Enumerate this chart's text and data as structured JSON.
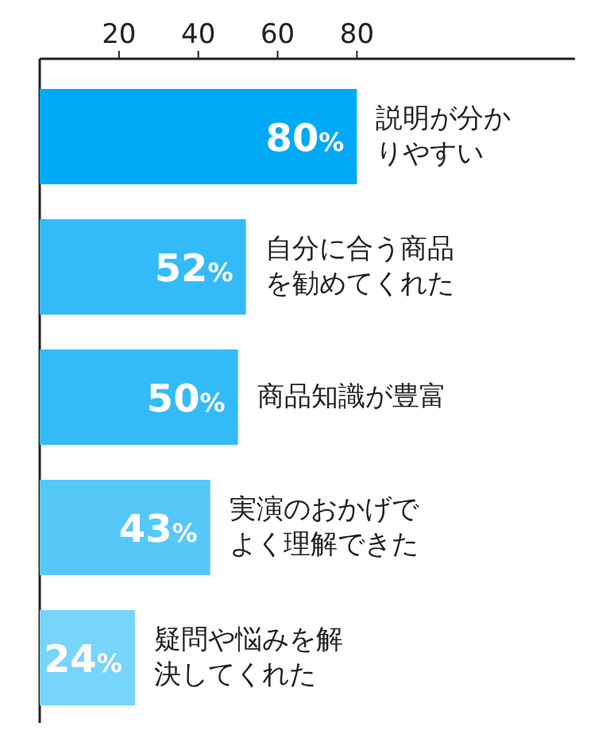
{
  "chart_data": {
    "type": "bar",
    "orientation": "horizontal",
    "categories": [
      "説明が分かりやすい",
      "自分に合う商品を勧めてくれた",
      "商品知識が豊富",
      "実演のおかげでよく理解できた",
      "疑問や悩みを解決してくれた"
    ],
    "values": [
      80,
      52,
      50,
      43,
      24
    ],
    "value_labels": [
      "80%",
      "52%",
      "50%",
      "43%",
      "24%"
    ],
    "colors": [
      "#00aaf5",
      "#33bbf7",
      "#33bbf7",
      "#55c8f8",
      "#77d4fa"
    ],
    "xlim": [
      0,
      135
    ],
    "xticks": [
      20,
      40,
      60,
      80
    ],
    "grid": false
  }
}
